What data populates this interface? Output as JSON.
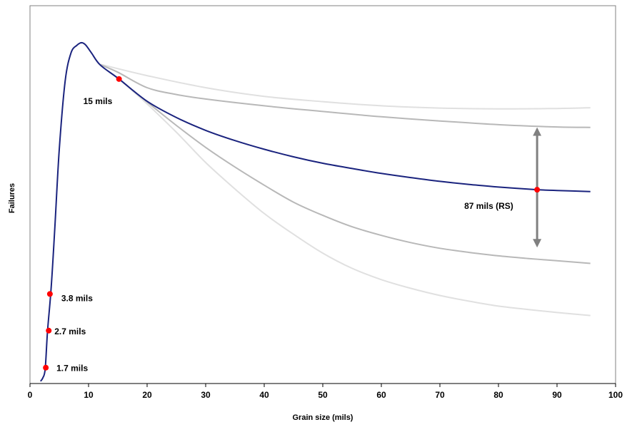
{
  "chart_data": {
    "type": "line",
    "title": "",
    "xlabel": "Grain size (mils)",
    "ylabel": "Failures",
    "xlim": [
      0,
      100
    ],
    "ylim": [
      0,
      100
    ],
    "x_ticks": [
      "0",
      "10",
      "20",
      "30",
      "40",
      "50",
      "60",
      "70",
      "80",
      "90",
      "100"
    ],
    "y_ticks_shown": false,
    "grid": false,
    "series": [
      {
        "role": "main",
        "color": "#1a237e",
        "x": [
          1.8,
          2.2,
          2.6,
          3.0,
          3.6,
          4.2,
          5.0,
          6.0,
          7.0,
          8.0,
          8.8,
          9.5,
          10.5,
          12.0,
          15.2,
          20.0,
          25.0,
          30.0,
          35.0,
          40.0,
          45.0,
          50.0,
          55.0,
          60.0,
          65.0,
          70.0,
          75.0,
          80.0,
          86.6,
          90.0,
          95.7
        ],
        "y": [
          0.6,
          1.5,
          3.9,
          14.0,
          25.0,
          40.0,
          62.0,
          80.0,
          87.5,
          89.5,
          90.2,
          89.6,
          87.5,
          84.3,
          80.6,
          74.7,
          70.4,
          67.0,
          64.3,
          62.0,
          60.0,
          58.3,
          56.9,
          55.6,
          54.5,
          53.5,
          52.7,
          52.0,
          51.3,
          51.1,
          50.8
        ]
      },
      {
        "role": "upper-light",
        "color": "#e0e0e0",
        "x": [
          12.0,
          20.0,
          30.0,
          40.0,
          50.0,
          60.0,
          70.0,
          80.0,
          90.0,
          95.7
        ],
        "y": [
          84.5,
          81.5,
          78.3,
          76.0,
          74.6,
          73.5,
          72.9,
          72.7,
          72.8,
          73.0
        ]
      },
      {
        "role": "upper-mid",
        "color": "#b8b8b8",
        "x": [
          12.0,
          15.0,
          20.0,
          25.0,
          30.0,
          40.0,
          50.0,
          60.0,
          70.0,
          80.0,
          90.0,
          95.7
        ],
        "y": [
          84.4,
          82.4,
          78.3,
          76.5,
          75.3,
          73.5,
          72.0,
          70.6,
          69.5,
          68.5,
          67.9,
          67.8
        ]
      },
      {
        "role": "lower-mid",
        "color": "#b8b8b8",
        "x": [
          15.2,
          20.0,
          25.0,
          30.0,
          35.0,
          40.0,
          45.0,
          50.0,
          55.0,
          60.0,
          65.0,
          70.0,
          75.0,
          80.0,
          85.0,
          90.0,
          95.7
        ],
        "y": [
          80.6,
          74.5,
          68.3,
          62.5,
          57.3,
          52.5,
          48.0,
          44.5,
          41.5,
          39.2,
          37.3,
          35.8,
          34.7,
          33.8,
          33.1,
          32.5,
          31.8
        ]
      },
      {
        "role": "lower-light",
        "color": "#e0e0e0",
        "x": [
          15.2,
          20.0,
          25.0,
          30.0,
          35.0,
          40.0,
          45.0,
          50.0,
          55.0,
          60.0,
          65.0,
          70.0,
          75.0,
          80.0,
          85.0,
          90.0,
          95.7
        ],
        "y": [
          80.6,
          74.0,
          66.5,
          58.5,
          51.5,
          45.0,
          39.5,
          34.5,
          30.5,
          27.5,
          25.2,
          23.3,
          21.8,
          20.5,
          19.6,
          18.8,
          18.0
        ]
      }
    ],
    "points": [
      {
        "x": 2.7,
        "y": 4.2,
        "label": "1.7 mils"
      },
      {
        "x": 3.2,
        "y": 14.0,
        "label": "2.7 mils"
      },
      {
        "x": 3.4,
        "y": 23.7,
        "label": "3.8 mils"
      },
      {
        "x": 15.2,
        "y": 80.6,
        "label": "15  mils"
      },
      {
        "x": 86.6,
        "y": 51.3,
        "label": "87 mils (RS)"
      }
    ],
    "range_arrow": {
      "x": 86.6,
      "y_top": 67.8,
      "y_bottom": 36.0
    }
  }
}
